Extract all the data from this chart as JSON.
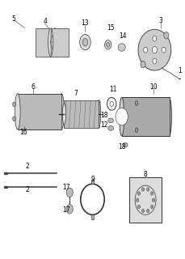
{
  "title": "",
  "bg_color": "#ffffff",
  "fig_width": 2.29,
  "fig_height": 3.2,
  "dpi": 100,
  "line_color": "#333333",
  "text_color": "#000000",
  "font_size": 5.5
}
